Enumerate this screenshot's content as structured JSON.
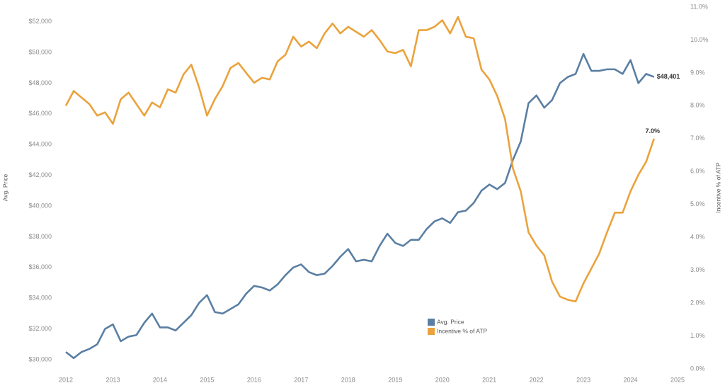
{
  "chart_data": {
    "type": "line",
    "y_label": "Avg. Price",
    "y2_label": "Incentive % of ATP",
    "x": [
      2012,
      2012.167,
      2012.333,
      2012.5,
      2012.667,
      2012.833,
      2013,
      2013.167,
      2013.333,
      2013.5,
      2013.667,
      2013.833,
      2014,
      2014.167,
      2014.333,
      2014.5,
      2014.667,
      2014.833,
      2015,
      2015.167,
      2015.333,
      2015.5,
      2015.667,
      2015.833,
      2016,
      2016.167,
      2016.333,
      2016.5,
      2016.667,
      2016.833,
      2017,
      2017.167,
      2017.333,
      2017.5,
      2017.667,
      2017.833,
      2018,
      2018.167,
      2018.333,
      2018.5,
      2018.667,
      2018.833,
      2019,
      2019.167,
      2019.333,
      2019.5,
      2019.667,
      2019.833,
      2020,
      2020.167,
      2020.333,
      2020.5,
      2020.667,
      2020.833,
      2021,
      2021.167,
      2021.333,
      2021.5,
      2021.667,
      2021.833,
      2022,
      2022.167,
      2022.333,
      2022.5,
      2022.667,
      2022.833,
      2023,
      2023.167,
      2023.333,
      2023.5,
      2023.667,
      2023.833,
      2024,
      2024.167,
      2024.333,
      2024.5
    ],
    "series": [
      {
        "name": "Avg. Price",
        "color": "#5a7fa3",
        "end_label": "$48,401",
        "values": [
          30500,
          30100,
          30500,
          30700,
          31000,
          32000,
          32300,
          31200,
          31500,
          31600,
          32400,
          33000,
          32100,
          32100,
          31900,
          32400,
          32900,
          33700,
          34200,
          33100,
          33000,
          33300,
          33600,
          34300,
          34800,
          34700,
          34500,
          34900,
          35500,
          36000,
          36200,
          35700,
          35500,
          35600,
          36100,
          36700,
          37200,
          36400,
          36500,
          36400,
          37400,
          38200,
          37600,
          37400,
          37800,
          37800,
          38500,
          39000,
          39200,
          38900,
          39600,
          39700,
          40200,
          41000,
          41400,
          41100,
          41500,
          43000,
          44200,
          46700,
          47200,
          46400,
          46900,
          48000,
          48400,
          48600,
          49900,
          48800,
          48800,
          48900,
          48900,
          48600,
          49500,
          48000,
          48600,
          48401
        ]
      },
      {
        "name": "Incentive % of ATP",
        "color": "#eba23c",
        "axis": "y2",
        "end_label": "7.0%",
        "values": [
          8.0,
          8.45,
          8.25,
          8.05,
          7.7,
          7.8,
          7.45,
          8.2,
          8.4,
          8.05,
          7.7,
          8.1,
          7.95,
          8.5,
          8.4,
          8.95,
          9.25,
          8.55,
          7.7,
          8.2,
          8.6,
          9.15,
          9.3,
          9.0,
          8.7,
          8.85,
          8.8,
          9.35,
          9.55,
          10.1,
          9.8,
          9.95,
          9.75,
          10.2,
          10.5,
          10.2,
          10.4,
          10.25,
          10.1,
          10.3,
          10.0,
          9.65,
          9.6,
          9.7,
          9.2,
          10.3,
          10.3,
          10.4,
          10.6,
          10.2,
          10.7,
          10.1,
          10.05,
          9.1,
          8.8,
          8.3,
          7.6,
          6.1,
          5.4,
          4.15,
          3.75,
          3.45,
          2.65,
          2.2,
          2.1,
          2.05,
          2.6,
          3.05,
          3.5,
          4.15,
          4.75,
          4.75,
          5.4,
          5.9,
          6.3,
          7.0
        ]
      }
    ],
    "xlim": [
      2011.8,
      2025.12
    ],
    "xticks": [
      2012,
      2013,
      2014,
      2015,
      2016,
      2017,
      2018,
      2019,
      2020,
      2021,
      2022,
      2023,
      2024,
      2025
    ],
    "ylim": [
      29400,
      52950
    ],
    "yticks": [
      {
        "value": 30000,
        "label": "$30,000"
      },
      {
        "value": 32000,
        "label": "$32,000"
      },
      {
        "value": 34000,
        "label": "$34,000"
      },
      {
        "value": 36000,
        "label": "$36,000"
      },
      {
        "value": 38000,
        "label": "$38,000"
      },
      {
        "value": 40000,
        "label": "$40,000"
      },
      {
        "value": 42000,
        "label": "$42,000"
      },
      {
        "value": 44000,
        "label": "$44,000"
      },
      {
        "value": 46000,
        "label": "$46,000"
      },
      {
        "value": 48000,
        "label": "$48,000"
      },
      {
        "value": 50000,
        "label": "$50,000"
      },
      {
        "value": 52000,
        "label": "$52,000"
      }
    ],
    "y2lim": [
      0,
      11
    ],
    "y2ticks": [
      {
        "value": 0,
        "label": "0.0%"
      },
      {
        "value": 1,
        "label": "1.0%"
      },
      {
        "value": 2,
        "label": "2.0%"
      },
      {
        "value": 3,
        "label": "3.0%"
      },
      {
        "value": 4,
        "label": "4.0%"
      },
      {
        "value": 5,
        "label": "5.0%"
      },
      {
        "value": 6,
        "label": "6.0%"
      },
      {
        "value": 7,
        "label": "7.0%"
      },
      {
        "value": 8,
        "label": "8.0%"
      },
      {
        "value": 9,
        "label": "9.0%"
      },
      {
        "value": 10,
        "label": "10.0%"
      },
      {
        "value": 11,
        "label": "11.0%"
      }
    ],
    "grid": false
  }
}
